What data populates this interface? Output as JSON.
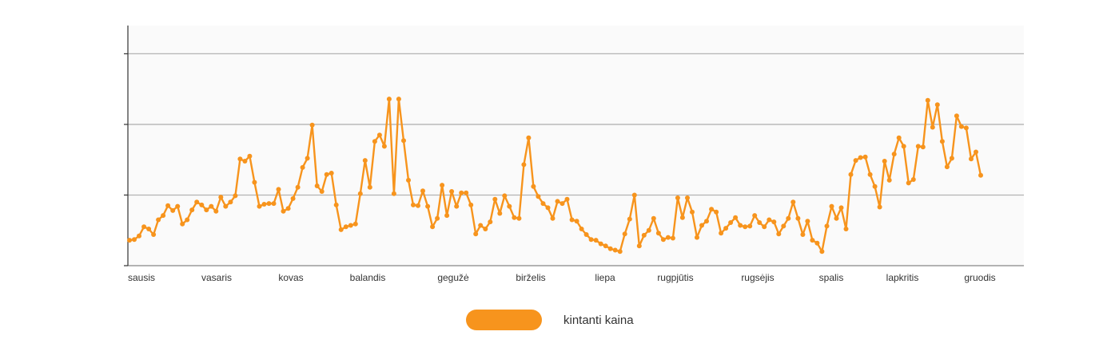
{
  "chart_data": {
    "type": "line",
    "x_labels": [
      "sausis",
      "vasaris",
      "kovas",
      "balandis",
      "gegužė",
      "birželis",
      "liepa",
      "rugpjūtis",
      "rugsėjis",
      "spalis",
      "lapkritis",
      "gruodis"
    ],
    "ylim": [
      0,
      3.4
    ],
    "grid": true,
    "legend_position": "bottom-center",
    "series": [
      {
        "name": "kintanti kaina",
        "color": "#F7941D",
        "values": [
          0.36,
          0.37,
          0.42,
          0.55,
          0.52,
          0.44,
          0.65,
          0.71,
          0.85,
          0.78,
          0.84,
          0.59,
          0.65,
          0.79,
          0.9,
          0.86,
          0.79,
          0.84,
          0.77,
          0.97,
          0.84,
          0.9,
          0.99,
          1.51,
          1.48,
          1.55,
          1.18,
          0.84,
          0.87,
          0.88,
          0.88,
          1.08,
          0.77,
          0.81,
          0.95,
          1.11,
          1.39,
          1.52,
          1.99,
          1.13,
          1.05,
          1.29,
          1.31,
          0.86,
          0.51,
          0.55,
          0.57,
          0.59,
          1.02,
          1.49,
          1.11,
          1.76,
          1.85,
          1.69,
          2.36,
          1.02,
          2.36,
          1.77,
          1.21,
          0.86,
          0.85,
          1.06,
          0.84,
          0.55,
          0.67,
          1.14,
          0.71,
          1.05,
          0.84,
          1.03,
          1.03,
          0.86,
          0.45,
          0.57,
          0.52,
          0.62,
          0.94,
          0.74,
          0.99,
          0.84,
          0.68,
          0.67,
          1.43,
          1.81,
          1.12,
          0.98,
          0.88,
          0.82,
          0.67,
          0.91,
          0.88,
          0.94,
          0.65,
          0.63,
          0.52,
          0.44,
          0.37,
          0.36,
          0.31,
          0.28,
          0.24,
          0.22,
          0.2,
          0.45,
          0.66,
          1.0,
          0.28,
          0.43,
          0.5,
          0.67,
          0.46,
          0.37,
          0.4,
          0.39,
          0.96,
          0.68,
          0.96,
          0.76,
          0.4,
          0.57,
          0.63,
          0.8,
          0.76,
          0.46,
          0.53,
          0.61,
          0.68,
          0.57,
          0.55,
          0.56,
          0.71,
          0.61,
          0.55,
          0.65,
          0.62,
          0.45,
          0.56,
          0.67,
          0.9,
          0.67,
          0.44,
          0.63,
          0.36,
          0.32,
          0.2,
          0.56,
          0.84,
          0.67,
          0.82,
          0.52,
          1.29,
          1.49,
          1.53,
          1.54,
          1.29,
          1.12,
          0.83,
          1.48,
          1.21,
          1.58,
          1.81,
          1.69,
          1.17,
          1.22,
          1.69,
          1.68,
          2.34,
          1.96,
          2.28,
          1.76,
          1.4,
          1.52,
          2.12,
          1.97,
          1.95,
          1.51,
          1.61,
          1.28
        ]
      }
    ]
  }
}
